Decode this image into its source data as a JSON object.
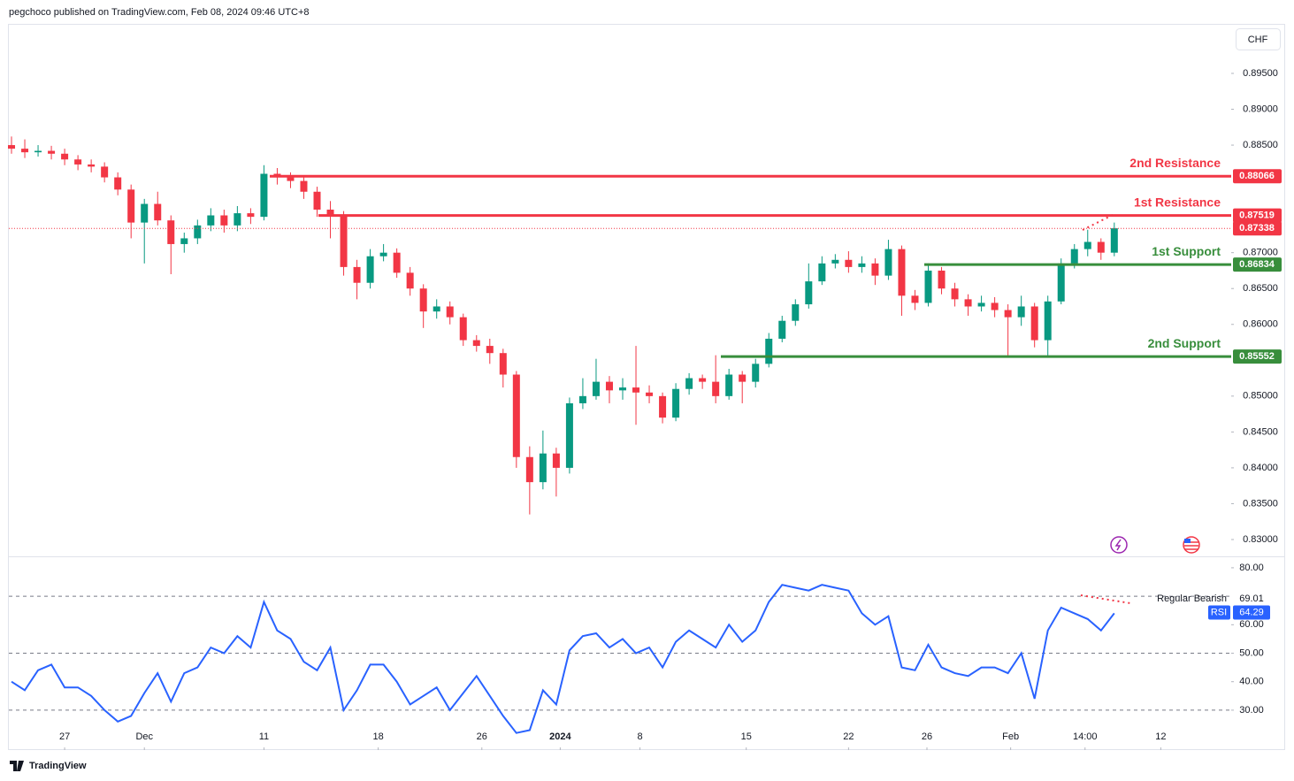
{
  "header": {
    "attribution": "pegchoco published on TradingView.com, Feb 08, 2024 09:46 UTC+8",
    "currency": "CHF",
    "brand": "TradingView"
  },
  "chart_data": {
    "type": "candlestick",
    "open": [
      0.885,
      0.8845,
      0.884,
      0.8842,
      0.8838,
      0.883,
      0.8823,
      0.882,
      0.8805,
      0.8788,
      0.8742,
      0.8768,
      0.8745,
      0.8712,
      0.872,
      0.8738,
      0.8752,
      0.8738,
      0.8755,
      0.875,
      0.881,
      0.8805,
      0.88,
      0.8785,
      0.876,
      0.8752,
      0.868,
      0.8658,
      0.8695,
      0.87,
      0.8672,
      0.865,
      0.8618,
      0.8625,
      0.861,
      0.8578,
      0.857,
      0.856,
      0.853,
      0.8415,
      0.838,
      0.842,
      0.84,
      0.849,
      0.85,
      0.852,
      0.8508,
      0.8512,
      0.8505,
      0.85,
      0.847,
      0.851,
      0.8525,
      0.852,
      0.85,
      0.853,
      0.852,
      0.8545,
      0.858,
      0.8605,
      0.8628,
      0.866,
      0.8685,
      0.869,
      0.868,
      0.8685,
      0.8668,
      0.8705,
      0.864,
      0.863,
      0.8675,
      0.865,
      0.8635,
      0.8625,
      0.863,
      0.862,
      0.861,
      0.8625,
      0.8578,
      0.8632,
      0.8685,
      0.8705,
      0.8715,
      0.87
    ],
    "high": [
      0.8862,
      0.8858,
      0.885,
      0.8849,
      0.8845,
      0.8836,
      0.883,
      0.8826,
      0.8812,
      0.8795,
      0.8775,
      0.8785,
      0.8752,
      0.8728,
      0.8746,
      0.8762,
      0.876,
      0.8765,
      0.8762,
      0.8822,
      0.8818,
      0.8812,
      0.8806,
      0.8792,
      0.8772,
      0.8758,
      0.869,
      0.8705,
      0.8712,
      0.8706,
      0.868,
      0.8656,
      0.8635,
      0.8632,
      0.8615,
      0.8585,
      0.858,
      0.8566,
      0.8535,
      0.843,
      0.8452,
      0.8428,
      0.8498,
      0.8525,
      0.8552,
      0.8528,
      0.8525,
      0.857,
      0.8515,
      0.8505,
      0.8518,
      0.8532,
      0.853,
      0.8557,
      0.8538,
      0.8535,
      0.8552,
      0.8588,
      0.8612,
      0.8635,
      0.8685,
      0.8695,
      0.8698,
      0.8702,
      0.8695,
      0.8692,
      0.8718,
      0.871,
      0.8648,
      0.8685,
      0.868,
      0.8658,
      0.8642,
      0.864,
      0.8638,
      0.8628,
      0.864,
      0.863,
      0.864,
      0.8692,
      0.8712,
      0.8732,
      0.872,
      0.8742
    ],
    "low": [
      0.8838,
      0.8832,
      0.8834,
      0.883,
      0.8822,
      0.8815,
      0.8812,
      0.8798,
      0.878,
      0.872,
      0.8685,
      0.8738,
      0.867,
      0.87,
      0.8712,
      0.873,
      0.8728,
      0.873,
      0.874,
      0.8745,
      0.8795,
      0.879,
      0.8775,
      0.875,
      0.872,
      0.8668,
      0.8635,
      0.865,
      0.8688,
      0.8665,
      0.864,
      0.8595,
      0.8608,
      0.86,
      0.857,
      0.8562,
      0.8545,
      0.8512,
      0.84,
      0.8335,
      0.837,
      0.836,
      0.8392,
      0.8482,
      0.8495,
      0.849,
      0.8495,
      0.846,
      0.849,
      0.8462,
      0.8465,
      0.8502,
      0.851,
      0.849,
      0.8495,
      0.849,
      0.8512,
      0.854,
      0.8575,
      0.8598,
      0.8622,
      0.8655,
      0.8678,
      0.8672,
      0.8672,
      0.8655,
      0.8662,
      0.8612,
      0.862,
      0.8625,
      0.8642,
      0.8625,
      0.8612,
      0.8618,
      0.861,
      0.8555,
      0.8598,
      0.8568,
      0.8555,
      0.8628,
      0.8678,
      0.8695,
      0.869,
      0.8695
    ],
    "close": [
      0.8845,
      0.884,
      0.8842,
      0.8838,
      0.883,
      0.8823,
      0.882,
      0.8805,
      0.8788,
      0.8742,
      0.8768,
      0.8745,
      0.8712,
      0.872,
      0.8738,
      0.8752,
      0.8738,
      0.8755,
      0.875,
      0.881,
      0.8805,
      0.88,
      0.8785,
      0.876,
      0.8752,
      0.868,
      0.8658,
      0.8695,
      0.87,
      0.8672,
      0.865,
      0.8618,
      0.8625,
      0.861,
      0.8578,
      0.857,
      0.856,
      0.853,
      0.8415,
      0.838,
      0.842,
      0.84,
      0.849,
      0.85,
      0.852,
      0.8508,
      0.8512,
      0.8505,
      0.85,
      0.847,
      0.851,
      0.8525,
      0.852,
      0.85,
      0.853,
      0.852,
      0.8545,
      0.858,
      0.8605,
      0.8628,
      0.866,
      0.8685,
      0.869,
      0.868,
      0.8685,
      0.8668,
      0.8705,
      0.864,
      0.863,
      0.8675,
      0.865,
      0.8635,
      0.8625,
      0.863,
      0.862,
      0.861,
      0.8625,
      0.8578,
      0.8632,
      0.8685,
      0.8705,
      0.8715,
      0.87,
      0.8734
    ],
    "up_color": "#089981",
    "down_color": "#f23645",
    "xlim": [
      -0.2,
      91.8
    ],
    "xticks": [
      {
        "value": 4,
        "label": "27"
      },
      {
        "value": 10,
        "label": "Dec"
      },
      {
        "value": 19,
        "label": "11"
      },
      {
        "value": 27.6,
        "label": "18"
      },
      {
        "value": 35.4,
        "label": "26"
      },
      {
        "value": 41.3,
        "label": "2024"
      },
      {
        "value": 47.3,
        "label": "8"
      },
      {
        "value": 55.3,
        "label": "15"
      },
      {
        "value": 63,
        "label": "22"
      },
      {
        "value": 68.9,
        "label": "26"
      },
      {
        "value": 75.2,
        "label": "Feb"
      },
      {
        "value": 80.8,
        "label": "14:00"
      },
      {
        "value": 86.5,
        "label": "12"
      }
    ],
    "ylim": [
      0.82778,
      0.904
    ],
    "yticks": [
      {
        "value": 0.895,
        "label": "0.89500"
      },
      {
        "value": 0.89,
        "label": "0.89000"
      },
      {
        "value": 0.885,
        "label": "0.88500"
      },
      {
        "value": 0.87,
        "label": "0.87000"
      },
      {
        "value": 0.865,
        "label": "0.86500"
      },
      {
        "value": 0.86,
        "label": "0.86000"
      },
      {
        "value": 0.85,
        "label": "0.85000"
      },
      {
        "value": 0.845,
        "label": "0.84500"
      },
      {
        "value": 0.84,
        "label": "0.84000"
      },
      {
        "value": 0.835,
        "label": "0.83500"
      },
      {
        "value": 0.83,
        "label": "0.83000"
      }
    ],
    "current_price": {
      "value": 0.87338,
      "color": "#f23645"
    },
    "levels": [
      {
        "label": "2nd Resistance",
        "value": 0.88066,
        "color": "#f23645"
      },
      {
        "label": "1st Resistance",
        "value": 0.87519,
        "color": "#f23645"
      },
      {
        "label": "1st Support",
        "value": 0.86834,
        "color": "#388e3c"
      },
      {
        "label": "2nd Support",
        "value": 0.85552,
        "color": "#388e3c"
      }
    ],
    "indicator": {
      "type": "line",
      "name": "RSI",
      "color": "#2962ff",
      "values": [
        40,
        37,
        44,
        46,
        38,
        38,
        35,
        30,
        26,
        28,
        36,
        43,
        33,
        43,
        45,
        52,
        50,
        56,
        52,
        68,
        58,
        55,
        47,
        44,
        52,
        30,
        37,
        46,
        46,
        40,
        32,
        35,
        38,
        30,
        36,
        42,
        35,
        28,
        22,
        23,
        37,
        32,
        51,
        56,
        57,
        52,
        55,
        50,
        52,
        45,
        54,
        58,
        55,
        52,
        60,
        54,
        58,
        68,
        74,
        73,
        72,
        74,
        73,
        72,
        64,
        60,
        63,
        45,
        44,
        53,
        45,
        43,
        42,
        45,
        45,
        43,
        50,
        34,
        58,
        66,
        64,
        62,
        58,
        64
      ],
      "ylim": [
        16,
        83.7
      ],
      "yticks": [
        {
          "value": 80,
          "label": "80.00"
        },
        {
          "value": 60,
          "label": "60.00"
        },
        {
          "value": 50,
          "label": "50.00"
        },
        {
          "value": 40,
          "label": "40.00"
        },
        {
          "value": 30,
          "label": "30.00"
        }
      ],
      "bands": [
        70,
        50,
        30
      ],
      "current_value": 64.29,
      "divergence_label": "Regular Bearish",
      "divergence_value": 69.01
    }
  }
}
